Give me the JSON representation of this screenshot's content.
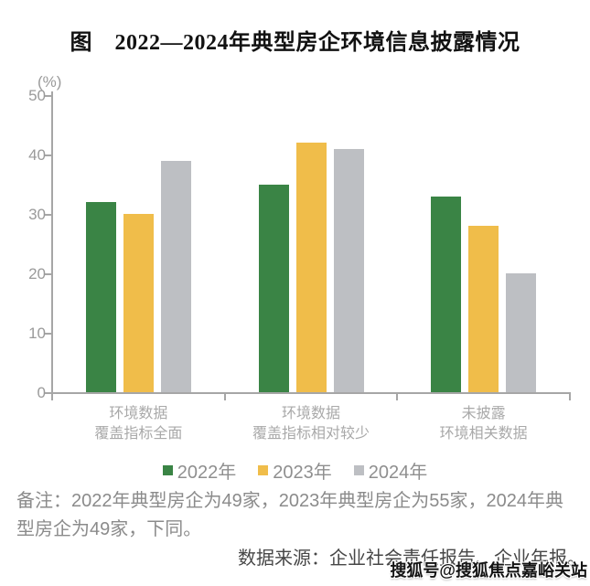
{
  "title": "图　2022—2024年典型房企环境信息披露情况",
  "note": "备注：2022年典型房企为49家，2023年典型房企为55家，2024年典型房企为49家，下同。",
  "source": "数据来源：企业社会责任报告、企业年报。",
  "watermark": "搜狐号@搜狐焦点嘉峪关站",
  "chart_data": {
    "type": "bar",
    "title": "图 2022—2024年典型房企环境信息披露情况",
    "unit_label": "(%)",
    "categories": [
      [
        "环境数据",
        "覆盖指标全面"
      ],
      [
        "环境数据",
        "覆盖指标相对较少"
      ],
      [
        "未披露",
        "环境相关数据"
      ]
    ],
    "series": [
      {
        "name": "2022年",
        "color": "#3a8445",
        "values": [
          32,
          35,
          33
        ]
      },
      {
        "name": "2023年",
        "color": "#f0bd4a",
        "values": [
          30,
          42,
          28
        ]
      },
      {
        "name": "2024年",
        "color": "#bdbfc3",
        "values": [
          39,
          41,
          20
        ]
      }
    ],
    "ylim": [
      0,
      50
    ],
    "yticks": [
      0,
      10,
      20,
      30,
      40,
      50
    ],
    "grid": false,
    "legend_position": "bottom",
    "axis_color": "#a6a6a6"
  }
}
